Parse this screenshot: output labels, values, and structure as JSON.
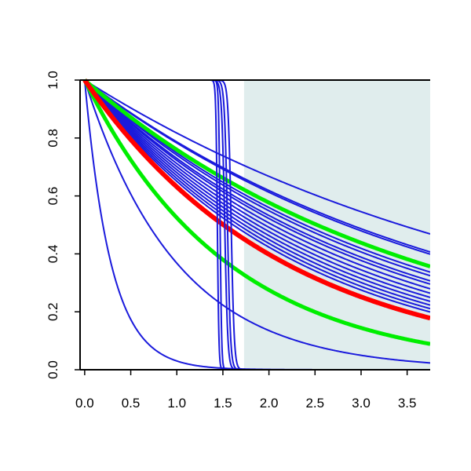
{
  "chart_data": {
    "type": "line",
    "title": "",
    "xlabel": "",
    "ylabel": "",
    "xlim": [
      -0.05,
      3.75
    ],
    "ylim": [
      0.0,
      1.0
    ],
    "x_ticks": [
      "0.0",
      "0.5",
      "1.0",
      "1.5",
      "2.0",
      "2.5",
      "3.0",
      "3.5"
    ],
    "y_ticks": [
      "0.0",
      "0.2",
      "0.4",
      "0.6",
      "0.8",
      "1.0"
    ],
    "grid": false,
    "shaded_region": {
      "x_from": 1.73,
      "x_to": 3.75,
      "color": "#e0eded"
    },
    "colors": {
      "blue": "#1a1adc",
      "red": "#ff0000",
      "green": "#00ee00",
      "axis": "#000000"
    },
    "series": [
      {
        "kind": "exp",
        "rate": 0.202,
        "color": "blue",
        "width": 2
      },
      {
        "kind": "exp",
        "rate": 0.24,
        "color": "blue",
        "width": 2
      },
      {
        "kind": "exp",
        "rate": 0.245,
        "color": "blue",
        "width": 2
      },
      {
        "kind": "exp",
        "rate": 0.29,
        "color": "blue",
        "width": 2
      },
      {
        "kind": "exp",
        "rate": 0.3,
        "color": "blue",
        "width": 2
      },
      {
        "kind": "exp",
        "rate": 0.315,
        "color": "blue",
        "width": 2
      },
      {
        "kind": "exp",
        "rate": 0.325,
        "color": "blue",
        "width": 2
      },
      {
        "kind": "exp",
        "rate": 0.34,
        "color": "blue",
        "width": 2
      },
      {
        "kind": "exp",
        "rate": 0.355,
        "color": "blue",
        "width": 2
      },
      {
        "kind": "exp",
        "rate": 0.37,
        "color": "blue",
        "width": 2
      },
      {
        "kind": "exp",
        "rate": 0.385,
        "color": "blue",
        "width": 2
      },
      {
        "kind": "exp",
        "rate": 0.4,
        "color": "blue",
        "width": 2
      },
      {
        "kind": "exp",
        "rate": 0.415,
        "color": "blue",
        "width": 2
      },
      {
        "kind": "exp",
        "rate": 0.43,
        "color": "blue",
        "width": 2
      },
      {
        "kind": "exp",
        "rate": 1.0,
        "color": "blue",
        "width": 2
      },
      {
        "kind": "exp",
        "rate": 3.5,
        "color": "blue",
        "width": 2
      },
      {
        "kind": "exp",
        "rate": 0.275,
        "color": "green",
        "width": 5
      },
      {
        "kind": "exp",
        "rate": 0.645,
        "color": "green",
        "width": 5
      },
      {
        "kind": "exp",
        "rate": 0.46,
        "color": "red",
        "width": 6
      },
      {
        "kind": "step",
        "center": 1.44,
        "steep": 120,
        "color": "blue",
        "width": 2
      },
      {
        "kind": "step",
        "center": 1.47,
        "steep": 120,
        "color": "blue",
        "width": 2
      },
      {
        "kind": "step",
        "center": 1.52,
        "steep": 60,
        "color": "blue",
        "width": 2
      },
      {
        "kind": "step",
        "center": 1.55,
        "steep": 60,
        "color": "blue",
        "width": 2
      },
      {
        "kind": "step",
        "center": 1.59,
        "steep": 60,
        "color": "blue",
        "width": 2
      }
    ]
  }
}
